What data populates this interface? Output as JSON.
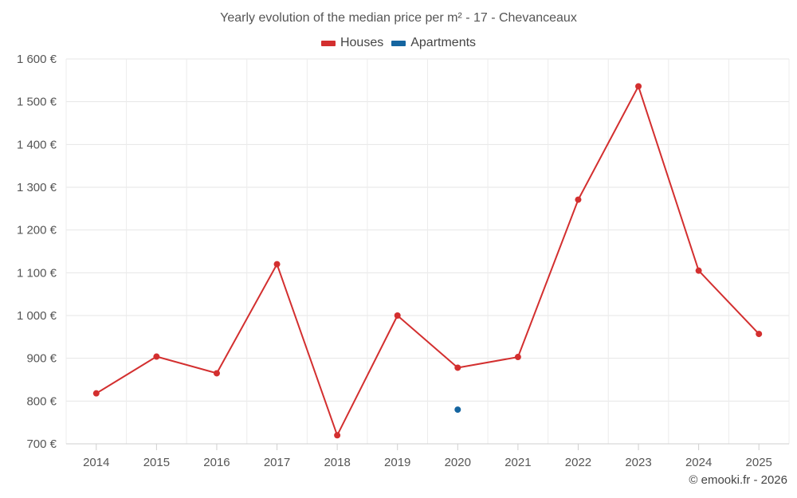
{
  "chart_data": {
    "type": "line",
    "title": "Yearly evolution of the median price per m² - 17 - Chevanceaux",
    "xlabel": "",
    "ylabel": "",
    "categories": [
      "2014",
      "2015",
      "2016",
      "2017",
      "2018",
      "2019",
      "2020",
      "2021",
      "2022",
      "2023",
      "2024",
      "2025"
    ],
    "ylim": [
      700,
      1600
    ],
    "yticks": [
      700,
      800,
      900,
      1000,
      1100,
      1200,
      1300,
      1400,
      1500,
      1600
    ],
    "ytick_labels": [
      "700 €",
      "800 €",
      "900 €",
      "1 000 €",
      "1 100 €",
      "1 200 €",
      "1 300 €",
      "1 400 €",
      "1 500 €",
      "1 600 €"
    ],
    "grid": true,
    "legend_position": "top-center",
    "series": [
      {
        "name": "Houses",
        "color": "#d32f2f",
        "values": [
          818,
          904,
          865,
          1120,
          720,
          1000,
          878,
          903,
          1271,
          1536,
          1105,
          957
        ]
      },
      {
        "name": "Apartments",
        "color": "#1565a0",
        "values": [
          null,
          null,
          null,
          null,
          null,
          null,
          780,
          null,
          null,
          null,
          null,
          null
        ]
      }
    ]
  },
  "credit": "© emooki.fr - 2026"
}
